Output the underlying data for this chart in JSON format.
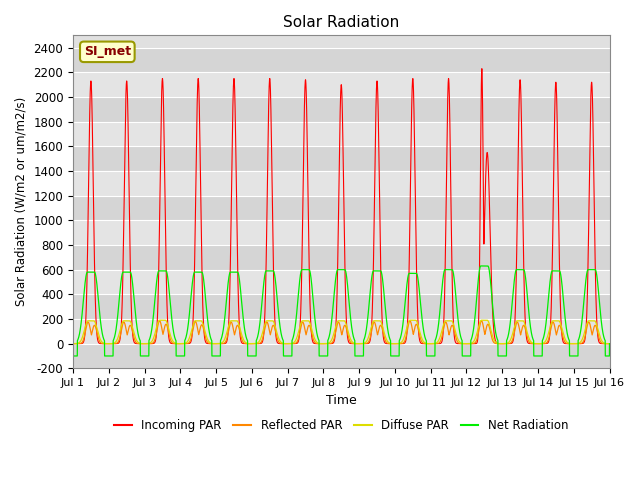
{
  "title": "Solar Radiation",
  "ylabel": "Solar Radiation (W/m2 or um/m2/s)",
  "xlabel": "Time",
  "xlim": [
    0,
    15
  ],
  "ylim": [
    -200,
    2500
  ],
  "yticks": [
    -200,
    0,
    200,
    400,
    600,
    800,
    1000,
    1200,
    1400,
    1600,
    1800,
    2000,
    2200,
    2400
  ],
  "xtick_labels": [
    "Jul 1",
    "Jul 2",
    "Jul 3",
    "Jul 4",
    "Jul 5",
    "Jul 6",
    "Jul 7",
    "Jul 8",
    "Jul 9",
    "Jul 10",
    "Jul 11",
    "Jul 12",
    "Jul 13",
    "Jul 14",
    "Jul 15",
    "Jul 16"
  ],
  "xtick_positions": [
    0,
    1,
    2,
    3,
    4,
    5,
    6,
    7,
    8,
    9,
    10,
    11,
    12,
    13,
    14,
    15
  ],
  "annotation_text": "SI_met",
  "background_color": "#e0e0e0",
  "line_colors": {
    "incoming": "#ff0000",
    "reflected": "#ff8800",
    "diffuse": "#dddd00",
    "net": "#00ee00"
  },
  "legend_labels": [
    "Incoming PAR",
    "Reflected PAR",
    "Diffuse PAR",
    "Net Radiation"
  ],
  "num_days": 15,
  "title_fontsize": 11
}
